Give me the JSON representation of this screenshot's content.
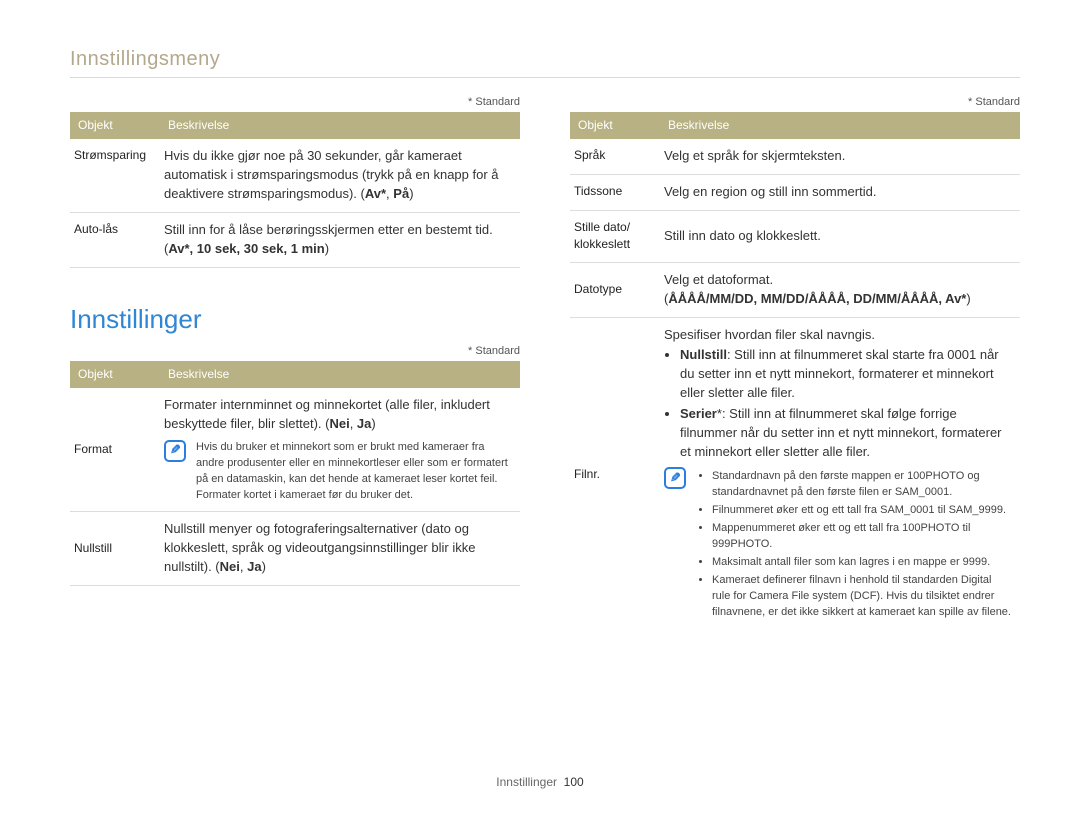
{
  "breadcrumb": "Innstillingsmeny",
  "standard_label": "* Standard",
  "headers": {
    "objekt": "Objekt",
    "beskrivelse": "Beskrivelse"
  },
  "section_title": "Innstillinger",
  "footer": {
    "label": "Innstillinger",
    "page": "100"
  },
  "left_top": {
    "rows": [
      {
        "obj": "Strømsparing",
        "desc": "Hvis du ikke gjør noe på 30 sekunder, går kameraet automatisk i strømsparingsmodus (trykk på en knapp for å deaktivere strømsparingsmodus). (",
        "bold1": "Av*",
        "comma": ", ",
        "bold2": "På",
        "close": ")"
      },
      {
        "obj": "Auto-lås",
        "desc": "Still inn for å låse berøringsskjermen etter en bestemt tid. (",
        "bold_all": "Av*, 10 sek, 30 sek, 1 min",
        "close": ")"
      }
    ]
  },
  "left_bottom": {
    "rows": [
      {
        "obj": "Format",
        "line1": "Formater internminnet og minnekortet (alle filer, inkludert beskyttede filer, blir slettet). (",
        "bold1": "Nei",
        "comma": ", ",
        "bold2": "Ja",
        "close": ")",
        "note": "Hvis du bruker et minnekort som er brukt med kameraer fra andre produsenter eller en minnekortleser eller som er formatert på en datamaskin, kan det hende at kameraet leser kortet feil. Formater kortet i kameraet før du bruker det."
      },
      {
        "obj": "Nullstill",
        "line1": "Nullstill menyer og fotograferingsalternativer (dato og klokkeslett, språk og videoutgangsinnstillinger blir ikke nullstilt). (",
        "bold1": "Nei",
        "comma": ", ",
        "bold2": "Ja",
        "close": ")"
      }
    ]
  },
  "right": {
    "rows": [
      {
        "obj": "Språk",
        "desc": "Velg et språk for skjermteksten."
      },
      {
        "obj": "Tidssone",
        "desc": "Velg en region og still inn sommertid."
      },
      {
        "obj": "Stille dato/\nklokkeslett",
        "desc": "Still inn dato og klokkeslett."
      },
      {
        "obj": "Datotype",
        "line1": "Velg et datoformat.",
        "open": "(",
        "bold": "ÅÅÅÅ/MM/DD, MM/DD/ÅÅÅÅ, DD/MM/ÅÅÅÅ, Av*",
        "close": ")"
      }
    ],
    "filnr": {
      "obj": "Filnr.",
      "intro": "Spesifiser hvordan filer skal navngis.",
      "bullet1_label": "Nullstill",
      "bullet1_text": ": Still inn at filnummeret skal starte fra 0001 når du setter inn et nytt minnekort, formaterer et minnekort eller sletter alle filer.",
      "bullet2_label": "Serier",
      "bullet2_star": "*",
      "bullet2_text": ": Still inn at filnummeret skal følge forrige filnummer når du setter inn et nytt minnekort, formaterer et minnekort eller sletter alle filer.",
      "notes": [
        "Standardnavn på den første mappen er 100PHOTO og standardnavnet på den første filen er SAM_0001.",
        "Filnummeret øker ett og ett tall fra SAM_0001 til SAM_9999.",
        "Mappenummeret øker ett og ett tall fra 100PHOTO til 999PHOTO.",
        "Maksimalt antall filer som kan lagres i en mappe er 9999.",
        "Kameraet definerer filnavn i henhold til standarden Digital rule for Camera File system (DCF). Hvis du tilsiktet endrer filnavnene, er det ikke sikkert at kameraet kan spille av filene."
      ]
    }
  }
}
